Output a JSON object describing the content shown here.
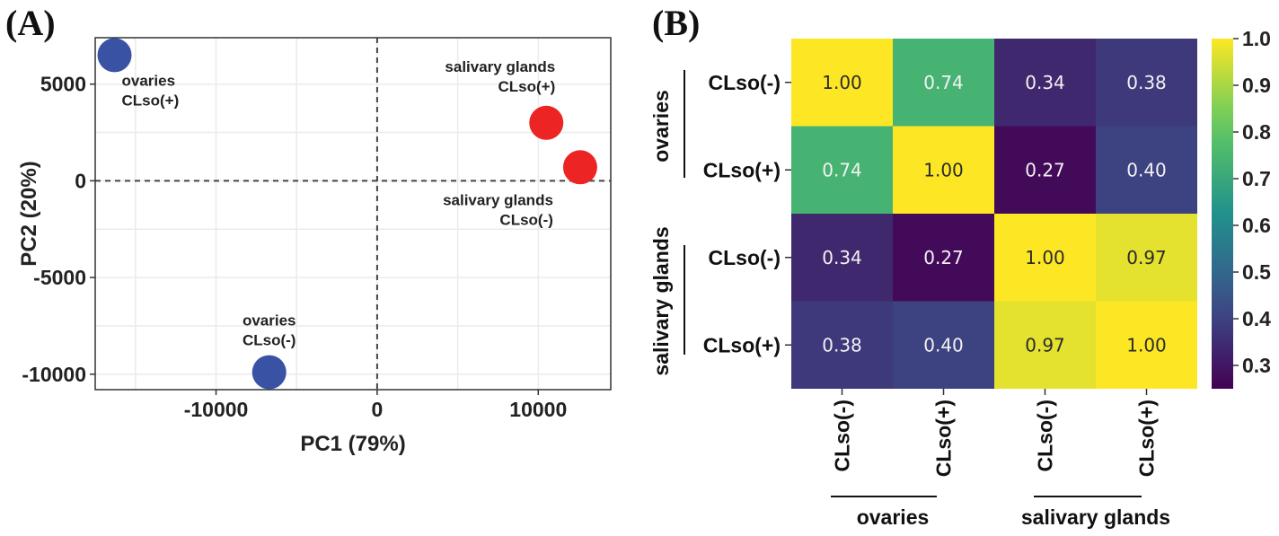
{
  "panel_a_label": "(A)",
  "panel_b_label": "(B)",
  "chart_data": [
    {
      "type": "scatter",
      "xlabel": "PC1 (79%)",
      "ylabel": "PC2 (20%)",
      "xlim": [
        -17500,
        14500
      ],
      "ylim": [
        -10800,
        7400
      ],
      "xticks": [
        -10000,
        0,
        10000
      ],
      "xtick_labels": [
        "-10000",
        "0",
        "10000"
      ],
      "yticks": [
        5000,
        0,
        -5000,
        -10000
      ],
      "ytick_labels": [
        "5000",
        "0",
        "-5000",
        "-10000"
      ],
      "grid": true,
      "reference_lines": {
        "x": 0,
        "y": 0,
        "style": "dashed"
      },
      "points": [
        {
          "name": "ovaries CLso(+)",
          "x": -16300,
          "y": 6500,
          "color": "#3a52a4",
          "label_lines": [
            "ovaries",
            "CLso(+)"
          ]
        },
        {
          "name": "ovaries CLso(-)",
          "x": -6700,
          "y": -9900,
          "color": "#3a52a4",
          "label_lines": [
            "ovaries",
            "CLso(-)"
          ]
        },
        {
          "name": "salivary glands CLso(+)",
          "x": 10500,
          "y": 3000,
          "color": "#ec2424",
          "label_lines": [
            "salivary glands",
            "CLso(+)"
          ]
        },
        {
          "name": "salivary glands CLso(-)",
          "x": 12600,
          "y": 700,
          "color": "#ec2424",
          "label_lines": [
            "salivary glands",
            "CLso(-)"
          ]
        }
      ]
    },
    {
      "type": "heatmap",
      "colormap": "viridis",
      "row_labels": [
        "CLso(-)",
        "CLso(+)",
        "CLso(-)",
        "CLso(+)"
      ],
      "col_labels": [
        "CLso(-)",
        "CLso(+)",
        "CLso(-)",
        "CLso(+)"
      ],
      "row_groups": [
        {
          "name": "ovaries",
          "rows": [
            0,
            1
          ]
        },
        {
          "name": "salivary glands",
          "rows": [
            2,
            3
          ]
        }
      ],
      "col_groups": [
        {
          "name": "ovaries",
          "cols": [
            0,
            1
          ]
        },
        {
          "name": "salivary glands",
          "cols": [
            2,
            3
          ]
        }
      ],
      "values": [
        [
          1.0,
          0.74,
          0.34,
          0.38
        ],
        [
          0.74,
          1.0,
          0.27,
          0.4
        ],
        [
          0.34,
          0.27,
          1.0,
          0.97
        ],
        [
          0.38,
          0.4,
          0.97,
          1.0
        ]
      ],
      "colorbar": {
        "min": 0.25,
        "max": 1.0,
        "ticks": [
          1.0,
          0.9,
          0.8,
          0.7,
          0.6,
          0.5,
          0.4,
          0.3
        ],
        "tick_labels": [
          "1.0",
          "0.9",
          "0.8",
          "0.7",
          "0.6",
          "0.5",
          "0.4",
          "0.3"
        ]
      }
    }
  ]
}
